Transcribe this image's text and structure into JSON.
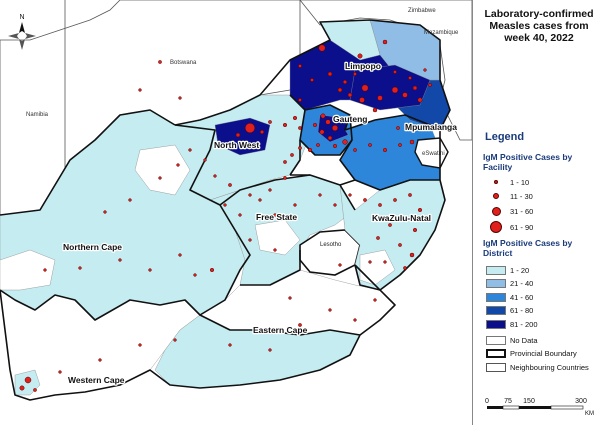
{
  "title": {
    "line1": "Laboratory-confirmed",
    "line2": "Measles cases from",
    "line3": "week 40, 2022"
  },
  "legend": {
    "heading": "Legend",
    "facility_title": "IgM Positive Cases by Facility",
    "facility_items": [
      "1 - 10",
      "11 - 30",
      "31 - 60",
      "61 - 90"
    ],
    "district_title": "IgM Positive Cases by District",
    "district_items": [
      {
        "label": "1 - 20",
        "color": "#c4ecf1"
      },
      {
        "label": "21 - 40",
        "color": "#8fbde6"
      },
      {
        "label": "41 - 60",
        "color": "#2d86da"
      },
      {
        "label": "61 - 80",
        "color": "#1248a8"
      },
      {
        "label": "81 - 200",
        "color": "#0b0f8c"
      }
    ],
    "no_data_label": "No Data",
    "provincial_boundary_label": "Provincial Boundary",
    "neighbouring_label": "Neighbouring Countries"
  },
  "scale": {
    "ticks": [
      "0",
      "75",
      "150",
      "300"
    ],
    "unit": "KM"
  },
  "map": {
    "countries": {
      "zimbabwe": "Zimbabwe",
      "mozambique": "Mozambique",
      "botswana": "Botswana",
      "namibia": "Namibia",
      "eswatini": "eSwatini",
      "lesotho": "Lesotho"
    },
    "provinces": {
      "limpopo": "Limpopo",
      "gauteng": "Gauteng",
      "mpumalanga": "Mpumalanga",
      "north_west": "North West",
      "free_state": "Free State",
      "kwazulu_natal": "KwaZulu-Natal",
      "northern_cape": "Northern Cape",
      "eastern_cape": "Eastern Cape",
      "western_cape": "Western Cape"
    },
    "north_arrow": "N"
  },
  "colors": {
    "class_1_20": "#c4ecf1",
    "class_21_40": "#8fbde6",
    "class_41_60": "#2d86da",
    "class_61_80": "#1248a8",
    "class_81_200": "#0b0f8c",
    "no_data": "#ffffff",
    "case_dot": "#e0201c"
  }
}
